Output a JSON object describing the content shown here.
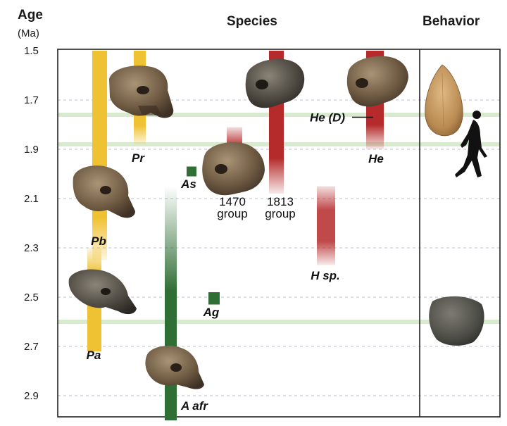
{
  "header": {
    "age_title": "Age",
    "age_unit": "(Ma)",
    "species_title": "Species",
    "behavior_title": "Behavior"
  },
  "colors": {
    "paranthropus": "#efc234",
    "homo": "#b52a2a",
    "australopithecus": "#2f6e35",
    "highlight": "#d9ebcf",
    "grid": "#b8c0d6"
  },
  "icons": [
    "skull-icon",
    "hand-axe-icon",
    "walking-human-icon",
    "stone-core-icon"
  ],
  "chart_data": {
    "type": "range-bar",
    "title": "",
    "ylabel": "Age (Ma)",
    "ylim": [
      1.5,
      3.0
    ],
    "yaxis_reversed": true,
    "yticks": [
      "1.5",
      "1.7",
      "1.9",
      "2.1",
      "2.3",
      "2.5",
      "2.7",
      "2.9"
    ],
    "grid": "dashed horizontal",
    "highlight_ages": [
      1.76,
      1.88,
      2.6
    ],
    "series": [
      {
        "label": "Pb",
        "group": "paranthropus",
        "start": 1.5,
        "end": 2.35,
        "fade": "bottom"
      },
      {
        "label": "Pa",
        "group": "paranthropus",
        "start": 2.3,
        "end": 2.72,
        "fade": "top"
      },
      {
        "label": "Pr",
        "group": "paranthropus",
        "start": 1.5,
        "end": 1.88,
        "fade": "bottom"
      },
      {
        "label": "As",
        "group": "australopithecus",
        "start": 1.97,
        "end": 2.01,
        "fade": "none"
      },
      {
        "label": "Ag",
        "group": "australopithecus",
        "start": 2.48,
        "end": 2.53,
        "fade": "none"
      },
      {
        "label": "A afr",
        "group": "australopithecus",
        "start": 2.05,
        "end": 3.0,
        "fade": "top"
      },
      {
        "label_line1": "1470",
        "label_line2": "group",
        "group": "homo",
        "start": 1.81,
        "end": 2.03,
        "fade": "both"
      },
      {
        "label_line1": "1813",
        "label_line2": "group",
        "group": "homo",
        "start": 1.5,
        "end": 2.08,
        "fade": "bottom"
      },
      {
        "label": "He",
        "group": "homo",
        "start": 1.5,
        "end": 1.9,
        "fade": "bottom"
      },
      {
        "label": "H sp.",
        "group": "homo",
        "start": 2.05,
        "end": 2.37,
        "fade": "both"
      }
    ],
    "annotations": [
      {
        "label": "He (D)",
        "age": 1.77
      }
    ]
  }
}
